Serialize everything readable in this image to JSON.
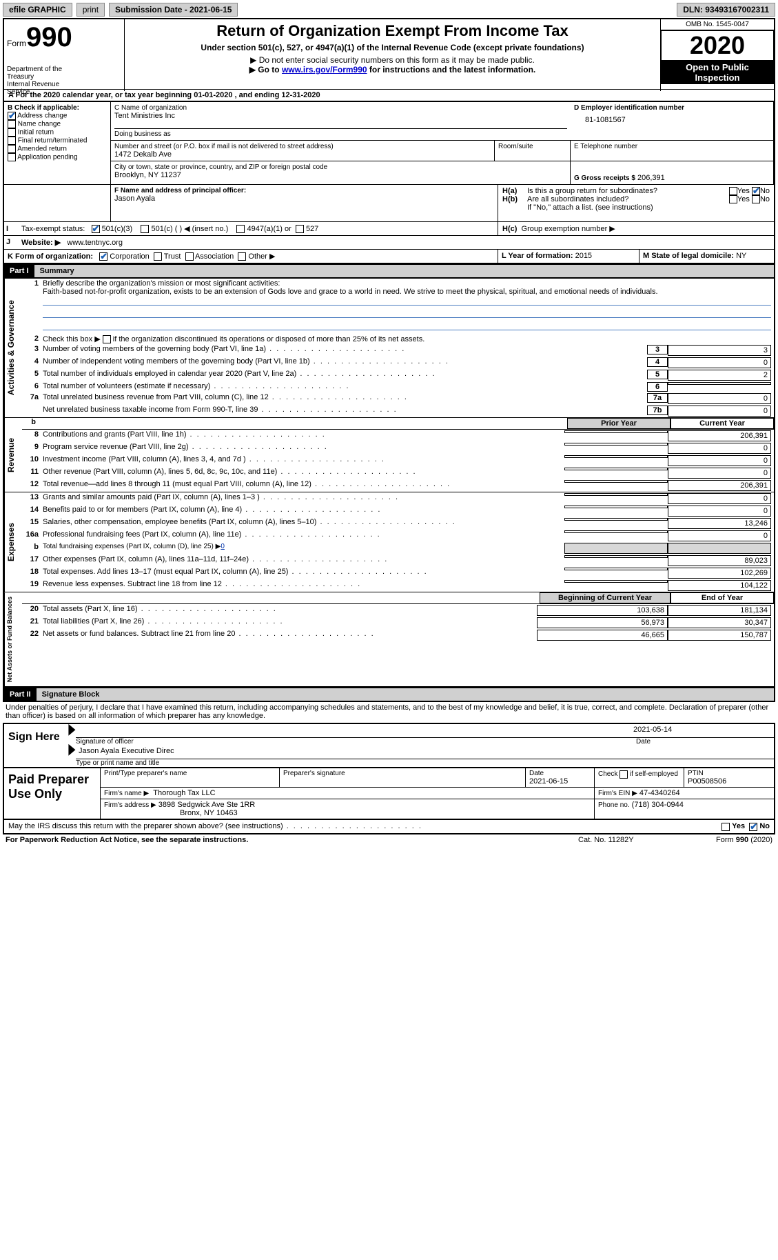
{
  "topbar": {
    "efile_label": "efile GRAPHIC",
    "print_btn": "print",
    "submission_label": "Submission Date - 2021-06-15",
    "dln_label": "DLN: 93493167002311"
  },
  "header": {
    "form_word": "Form",
    "form_num": "990",
    "dept1": "Department of the",
    "dept2": "Treasury",
    "dept3": "Internal Revenue",
    "dept4": "Service",
    "title": "Return of Organization Exempt From Income Tax",
    "subtitle": "Under section 501(c), 527, or 4947(a)(1) of the Internal Revenue Code (except private foundations)",
    "note1": "Do not enter social security numbers on this form as it may be made public.",
    "note2_a": "Go to ",
    "note2_link": "www.irs.gov/Form990",
    "note2_b": " for instructions and the latest information.",
    "omb": "OMB No. 1545-0047",
    "year": "2020",
    "open": "Open to Public Inspection"
  },
  "line_a": "For the 2020 calendar year, or tax year beginning 01-01-2020    , and ending 12-31-2020",
  "box_b": {
    "title": "B Check if applicable:",
    "items": [
      "Address change",
      "Name change",
      "Initial return",
      "Final return/terminated",
      "Amended return",
      "Application pending"
    ],
    "checked": [
      true,
      false,
      false,
      false,
      false,
      false
    ]
  },
  "box_c": {
    "name_label": "C Name of organization",
    "name": "Tent Ministries Inc",
    "dba_label": "Doing business as",
    "dba": "",
    "street_label": "Number and street (or P.O. box if mail is not delivered to street address)",
    "room_label": "Room/suite",
    "street": "1472 Dekalb Ave",
    "city_label": "City or town, state or province, country, and ZIP or foreign postal code",
    "city": "Brooklyn, NY  11237"
  },
  "box_d": {
    "label": "D Employer identification number",
    "value": "81-1081567"
  },
  "box_e": {
    "label": "E Telephone number",
    "value": ""
  },
  "box_g": {
    "label": "G Gross receipts $",
    "value": "206,391"
  },
  "box_f": {
    "label": "F  Name and address of principal officer:",
    "value": "Jason Ayala"
  },
  "box_h": {
    "ha": "Is this a group return for subordinates?",
    "hb": "Are all subordinates included?",
    "hb_note": "If \"No,\" attach a list. (see instructions)",
    "hc": "Group exemption number ▶",
    "yes": "Yes",
    "no": "No",
    "ha_yes": false,
    "ha_no": true,
    "hb_yes": false,
    "hb_no": false
  },
  "line_i": {
    "label": "Tax-exempt status:",
    "opt1": "501(c)(3)",
    "opt2": "501(c) (  ) ◀ (insert no.)",
    "opt3": "4947(a)(1) or",
    "opt4": "527",
    "opt1_checked": true
  },
  "line_j": {
    "label": "Website: ▶",
    "value": "www.tentnyc.org"
  },
  "line_k": {
    "label": "K Form of organization:",
    "opts": [
      "Corporation",
      "Trust",
      "Association",
      "Other ▶"
    ],
    "checked": [
      true,
      false,
      false,
      false
    ]
  },
  "line_l": {
    "label": "L Year of formation:",
    "value": "2015"
  },
  "line_m": {
    "label": "M State of legal domicile:",
    "value": "NY"
  },
  "part1": {
    "header": "Part I",
    "title": "Summary",
    "q1_label": "Briefly describe the organization's mission or most significant activities:",
    "q1_text": "Faith-based not-for-profit organization, exists to be an extension of Gods love and grace to a world in need. We strive to meet the physical, spiritual, and emotional needs of individuals.",
    "q2": "Check this box ▶        if the organization discontinued its operations or disposed of more than 25% of its net assets.",
    "lines_gov": [
      {
        "n": "3",
        "t": "Number of voting members of the governing body (Part VI, line 1a)",
        "box": "3",
        "v": "3"
      },
      {
        "n": "4",
        "t": "Number of independent voting members of the governing body (Part VI, line 1b)",
        "box": "4",
        "v": "0"
      },
      {
        "n": "5",
        "t": "Total number of individuals employed in calendar year 2020 (Part V, line 2a)",
        "box": "5",
        "v": "2"
      },
      {
        "n": "6",
        "t": "Total number of volunteers (estimate if necessary)",
        "box": "6",
        "v": ""
      },
      {
        "n": "7a",
        "t": "Total unrelated business revenue from Part VIII, column (C), line 12",
        "box": "7a",
        "v": "0"
      },
      {
        "n": "",
        "t": "Net unrelated business taxable income from Form 990-T, line 39",
        "box": "7b",
        "v": "0"
      }
    ],
    "col_headers": {
      "prior": "Prior Year",
      "current": "Current Year"
    },
    "revenue": [
      {
        "n": "8",
        "t": "Contributions and grants (Part VIII, line 1h)",
        "p": "",
        "c": "206,391"
      },
      {
        "n": "9",
        "t": "Program service revenue (Part VIII, line 2g)",
        "p": "",
        "c": "0"
      },
      {
        "n": "10",
        "t": "Investment income (Part VIII, column (A), lines 3, 4, and 7d )",
        "p": "",
        "c": "0"
      },
      {
        "n": "11",
        "t": "Other revenue (Part VIII, column (A), lines 5, 6d, 8c, 9c, 10c, and 11e)",
        "p": "",
        "c": "0"
      },
      {
        "n": "12",
        "t": "Total revenue—add lines 8 through 11 (must equal Part VIII, column (A), line 12)",
        "p": "",
        "c": "206,391"
      }
    ],
    "expenses": [
      {
        "n": "13",
        "t": "Grants and similar amounts paid (Part IX, column (A), lines 1–3 )",
        "p": "",
        "c": "0"
      },
      {
        "n": "14",
        "t": "Benefits paid to or for members (Part IX, column (A), line 4)",
        "p": "",
        "c": "0"
      },
      {
        "n": "15",
        "t": "Salaries, other compensation, employee benefits (Part IX, column (A), lines 5–10)",
        "p": "",
        "c": "13,246"
      },
      {
        "n": "16a",
        "t": "Professional fundraising fees (Part IX, column (A), line 11e)",
        "p": "",
        "c": "0"
      },
      {
        "n": "b",
        "t": "Total fundraising expenses (Part IX, column (D), line 25) ▶",
        "p": "shade",
        "c": "shade",
        "inline": "0"
      },
      {
        "n": "17",
        "t": "Other expenses (Part IX, column (A), lines 11a–11d, 11f–24e)",
        "p": "",
        "c": "89,023"
      },
      {
        "n": "18",
        "t": "Total expenses. Add lines 13–17 (must equal Part IX, column (A), line 25)",
        "p": "",
        "c": "102,269"
      },
      {
        "n": "19",
        "t": "Revenue less expenses. Subtract line 18 from line 12",
        "p": "",
        "c": "104,122"
      }
    ],
    "col_headers2": {
      "beg": "Beginning of Current Year",
      "end": "End of Year"
    },
    "net": [
      {
        "n": "20",
        "t": "Total assets (Part X, line 16)",
        "p": "103,638",
        "c": "181,134"
      },
      {
        "n": "21",
        "t": "Total liabilities (Part X, line 26)",
        "p": "56,973",
        "c": "30,347"
      },
      {
        "n": "22",
        "t": "Net assets or fund balances. Subtract line 21 from line 20",
        "p": "46,665",
        "c": "150,787"
      }
    ],
    "vlabels": {
      "gov": "Activities & Governance",
      "rev": "Revenue",
      "exp": "Expenses",
      "net": "Net Assets or Fund Balances"
    }
  },
  "part2": {
    "header": "Part II",
    "title": "Signature Block",
    "decl": "Under penalties of perjury, I declare that I have examined this return, including accompanying schedules and statements, and to the best of my knowledge and belief, it is true, correct, and complete. Declaration of preparer (other than officer) is based on all information of which preparer has any knowledge.",
    "sign_here": "Sign Here",
    "sig_officer": "Signature of officer",
    "sig_date_label": "Date",
    "sig_date": "2021-05-14",
    "sig_name": "Jason Ayala  Executive Direc",
    "sig_name_label": "Type or print name and title",
    "paid": "Paid Preparer Use Only",
    "prep_name_label": "Print/Type preparer's name",
    "prep_sig_label": "Preparer's signature",
    "prep_date_label": "Date",
    "prep_date": "2021-06-15",
    "self_emp": "Check        if self-employed",
    "ptin_label": "PTIN",
    "ptin": "P00508506",
    "firm_name_label": "Firm's name    ▶",
    "firm_name": "Thorough Tax LLC",
    "firm_ein_label": "Firm's EIN ▶",
    "firm_ein": "47-4340264",
    "firm_addr_label": "Firm's address ▶",
    "firm_addr1": "3898 Sedgwick Ave Ste 1RR",
    "firm_addr2": "Bronx, NY  10463",
    "phone_label": "Phone no.",
    "phone": "(718) 304-0944",
    "discuss": "May the IRS discuss this return with the preparer shown above? (see instructions)",
    "discuss_yes": false,
    "discuss_no": true
  },
  "footer": {
    "pra": "For Paperwork Reduction Act Notice, see the separate instructions.",
    "cat": "Cat. No. 11282Y",
    "form": "Form 990 (2020)"
  },
  "colors": {
    "link": "#0000cc",
    "check": "#1a5fb4",
    "shade": "#d8d8d8"
  }
}
